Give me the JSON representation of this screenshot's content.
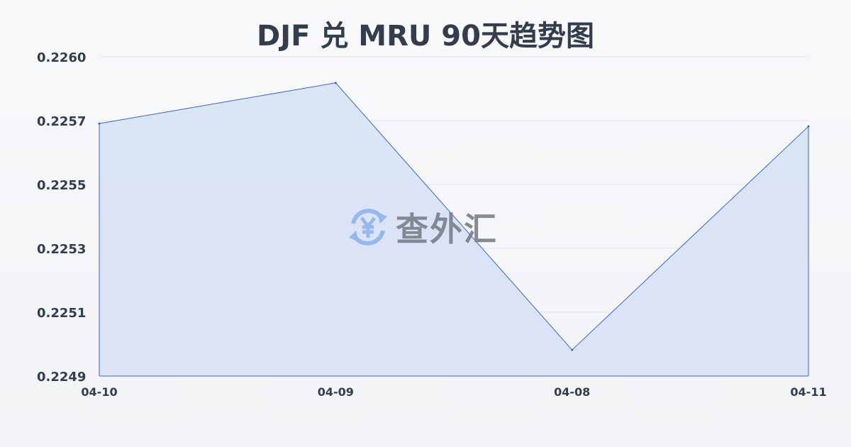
{
  "chart_data": {
    "type": "area",
    "title": "DJF 兑 MRU 90天趋势图",
    "xlabel": "",
    "ylabel": "",
    "categories": [
      "04-10",
      "04-09",
      "04-08",
      "04-11"
    ],
    "series": [
      {
        "values": [
          0.22577,
          0.22591,
          0.22499,
          0.22576
        ]
      }
    ],
    "yticks": [
      "0.2249",
      "0.2251",
      "0.2253",
      "0.2255",
      "0.2257",
      "0.2260"
    ],
    "ylim": [
      0.2249,
      0.226
    ],
    "grid": true,
    "line_color": "#3a64c8",
    "fill_color": "#d7e2f5"
  },
  "watermark": {
    "text": "查外汇",
    "icon": "yen-exchange-icon",
    "icon_color": "#8fb4ee"
  }
}
